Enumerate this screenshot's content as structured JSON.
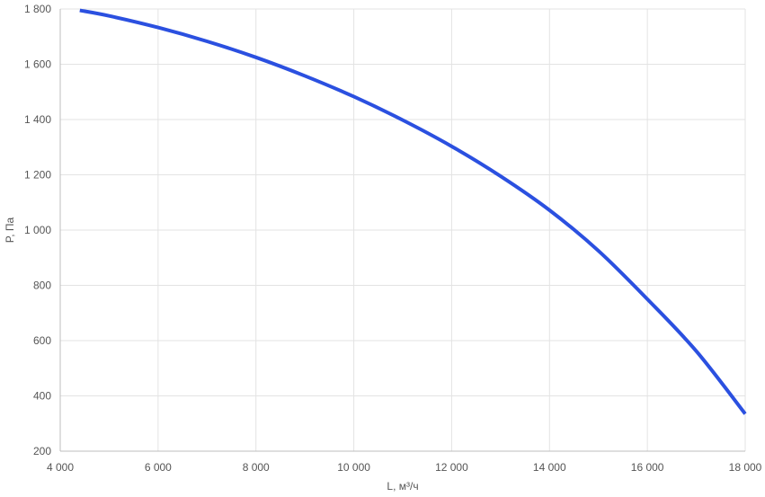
{
  "chart_data": {
    "type": "line",
    "title": "",
    "xlabel": "L, м³/ч",
    "ylabel": "P, Па",
    "xlim": [
      4000,
      18000
    ],
    "ylim": [
      200,
      1800
    ],
    "x_ticks": [
      4000,
      6000,
      8000,
      10000,
      12000,
      14000,
      16000,
      18000
    ],
    "x_tick_labels": [
      "4 000",
      "6 000",
      "8 000",
      "10 000",
      "12 000",
      "14 000",
      "16 000",
      "18 000"
    ],
    "y_ticks": [
      200,
      400,
      600,
      800,
      1000,
      1200,
      1400,
      1600,
      1800
    ],
    "y_tick_labels": [
      "200",
      "400",
      "600",
      "800",
      "1 000",
      "1 200",
      "1 400",
      "1 600",
      "1 800"
    ],
    "grid": true,
    "legend": "none",
    "series": [
      {
        "color": "#2b50e0",
        "x": [
          4400,
          5000,
          6000,
          7000,
          8000,
          9000,
          10000,
          11000,
          12000,
          13000,
          14000,
          15000,
          16000,
          17000,
          18000
        ],
        "y": [
          1795,
          1775,
          1733,
          1683,
          1625,
          1558,
          1483,
          1398,
          1303,
          1195,
          1072,
          925,
          750,
          562,
          335
        ]
      }
    ]
  }
}
